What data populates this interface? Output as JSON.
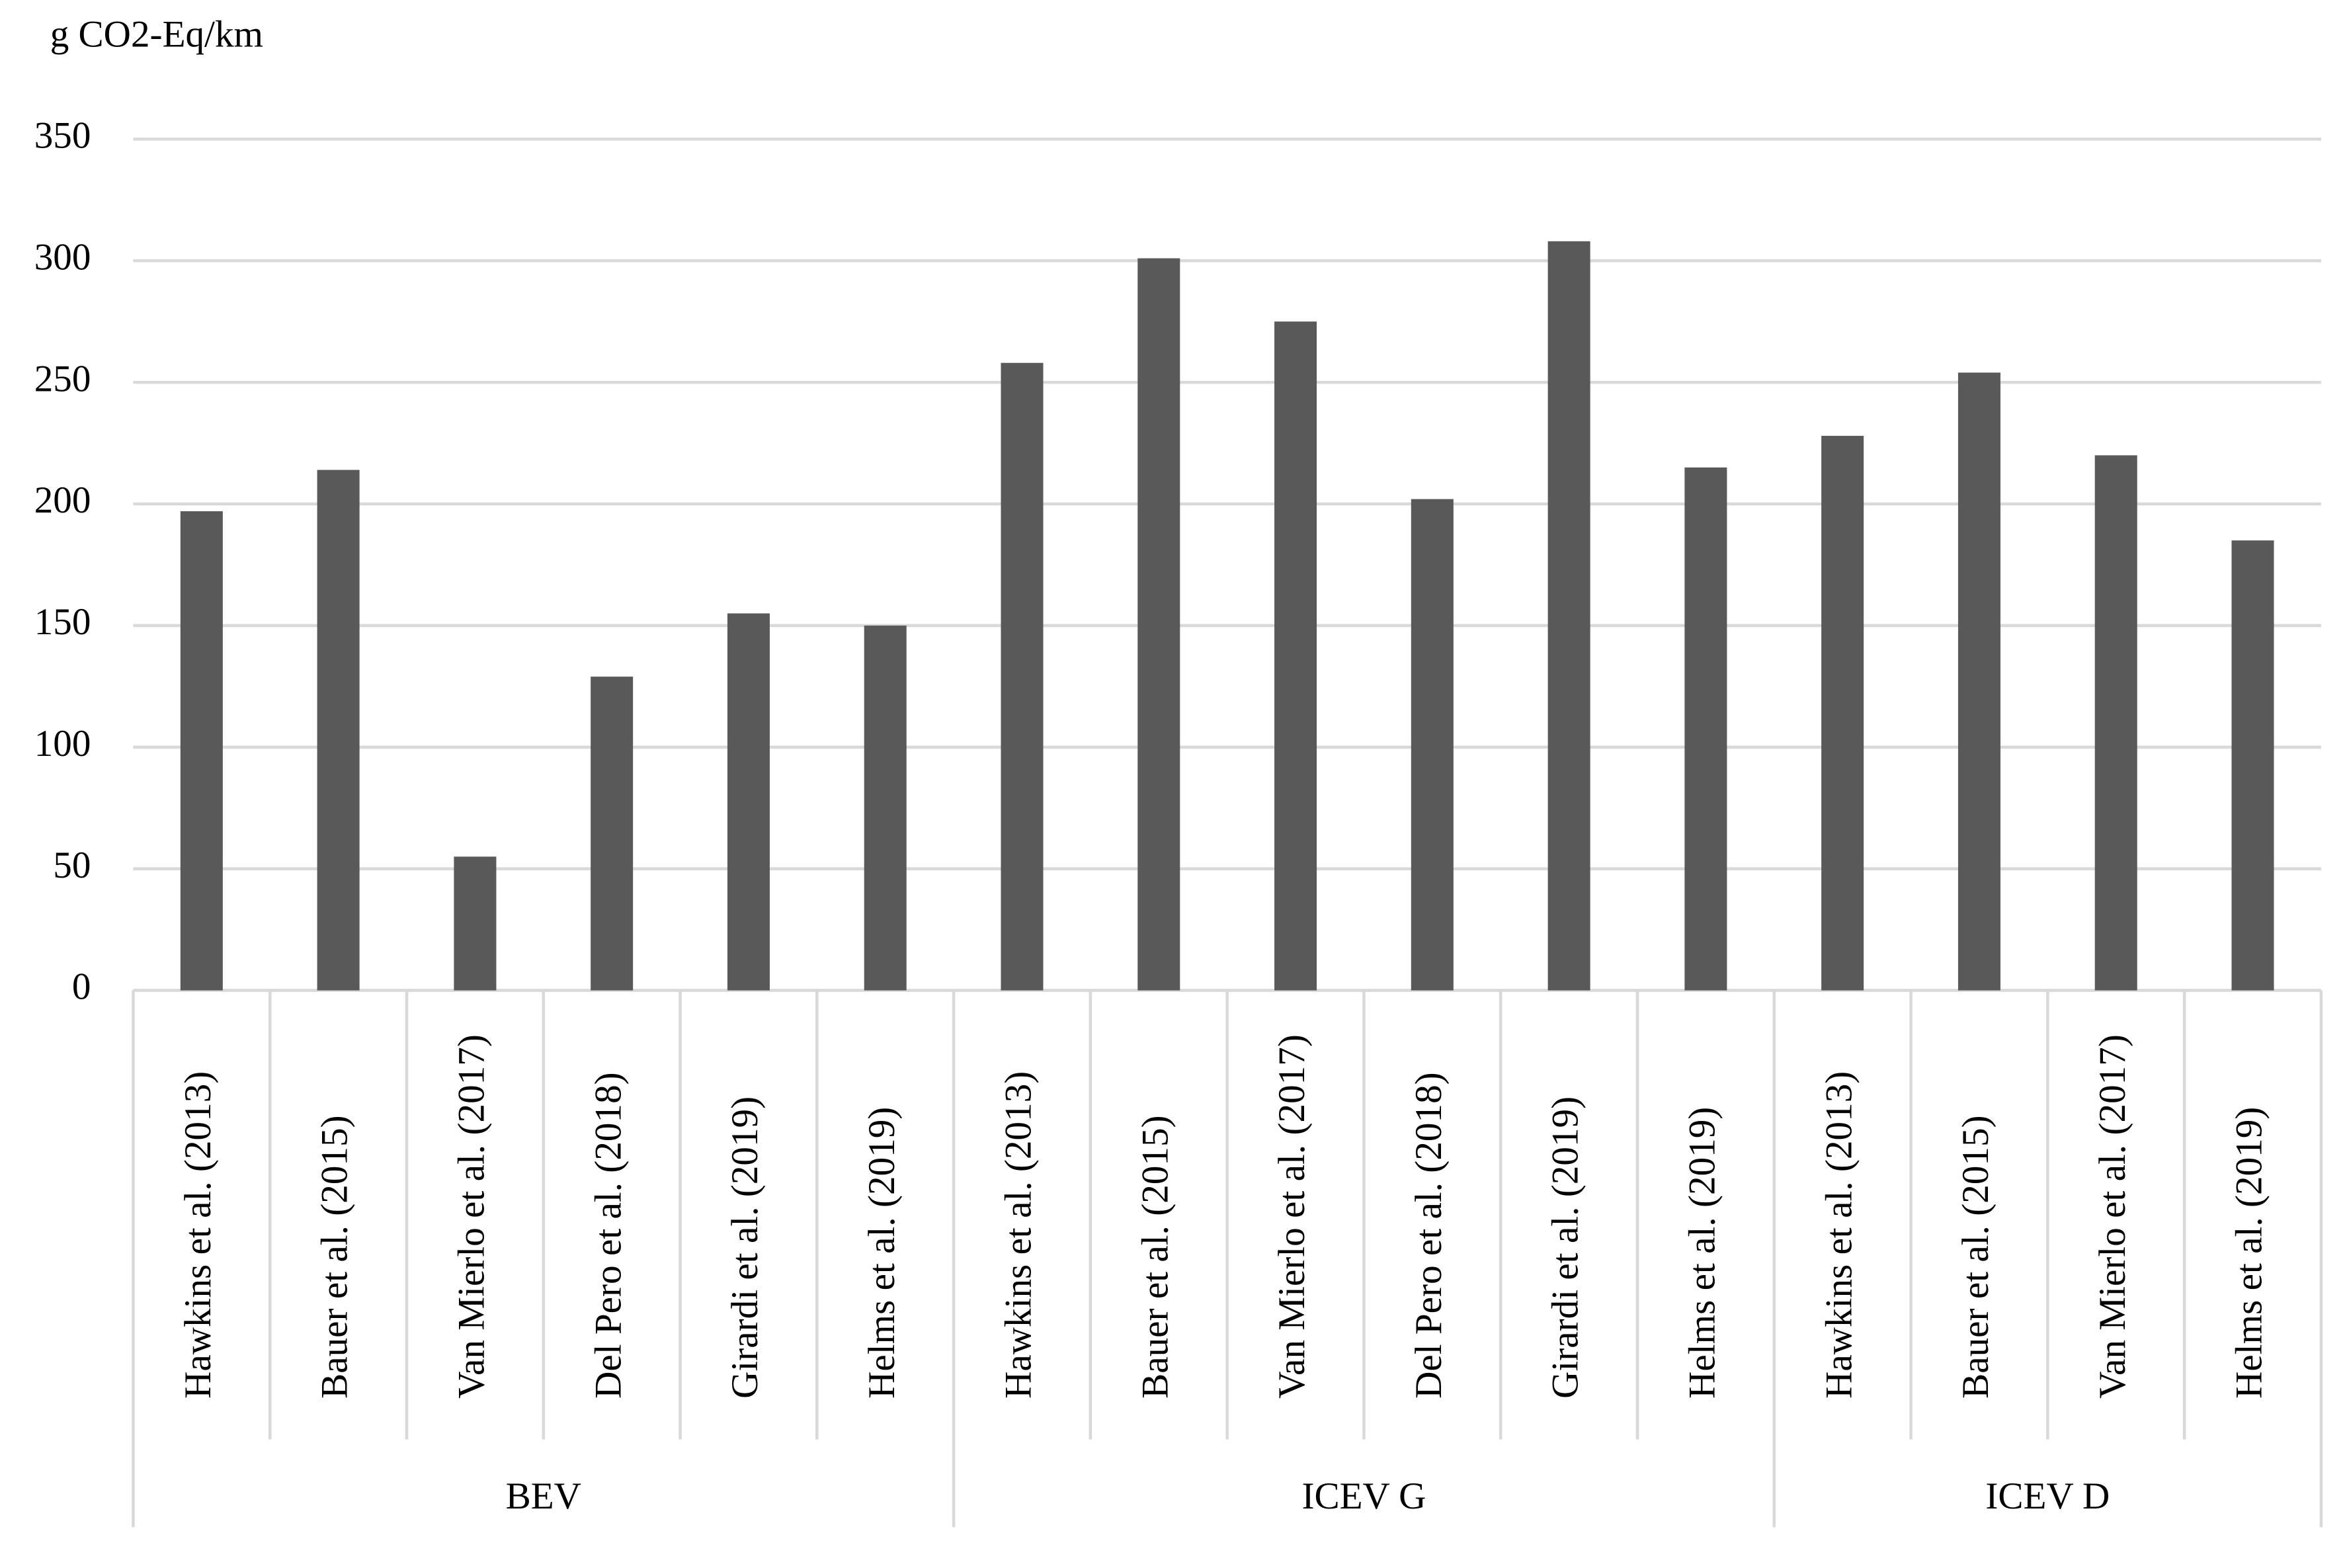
{
  "chart_data": {
    "type": "bar",
    "y_label": "g CO2-Eq/km",
    "color": "#595959",
    "ylim": [
      0,
      350
    ],
    "yticks": [
      0,
      50,
      100,
      150,
      200,
      250,
      300,
      350
    ],
    "grid": true,
    "groups": [
      {
        "name": "BEV",
        "categories": [
          "Hawkins et al. (2013)",
          "Bauer et al. (2015)",
          "Van Mierlo et al. (2017)",
          "Del Pero et al. (2018)",
          "Girardi et al. (2019)",
          "Helms et al. (2019)"
        ],
        "values": [
          197,
          214,
          55,
          129,
          155,
          150
        ]
      },
      {
        "name": "ICEV G",
        "categories": [
          "Hawkins et al. (2013)",
          "Bauer et al. (2015)",
          "Van Mierlo et al. (2017)",
          "Del Pero et al. (2018)",
          "Girardi et al. (2019)",
          "Helms et al. (2019)"
        ],
        "values": [
          258,
          301,
          275,
          202,
          308,
          215
        ]
      },
      {
        "name": "ICEV D",
        "categories": [
          "Hawkins et al. (2013)",
          "Bauer et al. (2015)",
          "Van Mierlo et al. (2017)",
          "Helms et al. (2019)"
        ],
        "values": [
          228,
          254,
          220,
          185
        ]
      }
    ]
  }
}
